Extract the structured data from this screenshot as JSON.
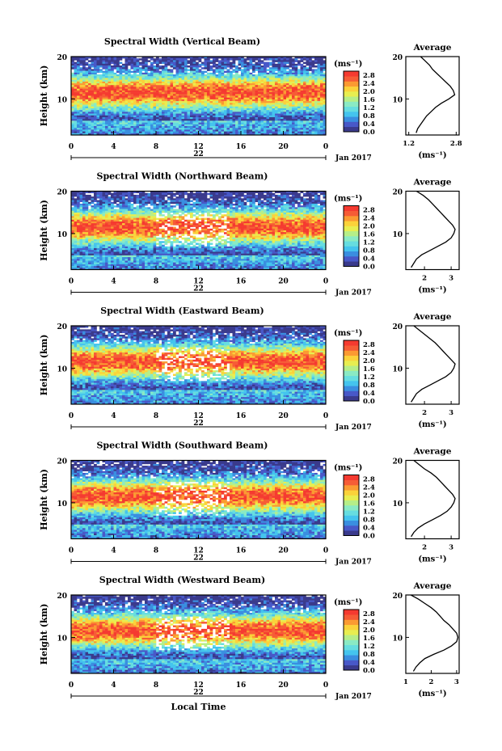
{
  "figure": {
    "date_label": "Jan 2017",
    "day_label": "22",
    "xlabel": "Local Time",
    "colorbar_unit": "(ms⁻¹)",
    "average_title": "Average",
    "average_xlabel": "(ms⁻¹)"
  },
  "colors": {
    "palette": [
      "#3a3a8c",
      "#4858c8",
      "#3a8ee0",
      "#44c4ee",
      "#66dde0",
      "#8aeac4",
      "#b6ee88",
      "#e8ee50",
      "#fbd23a",
      "#fb9a32",
      "#f65c36",
      "#f53a30"
    ]
  },
  "chart_data": [
    {
      "type": "heatmap",
      "title": "Spectral Width (Vertical Beam)",
      "ylabel": "Height (km)",
      "x_ticks": [
        "0",
        "4",
        "8",
        "12",
        "16",
        "20",
        "0"
      ],
      "xlim": [
        0,
        24
      ],
      "y_ticks": [
        "20",
        "10"
      ],
      "ylim": [
        1.5,
        20
      ],
      "colorbar": {
        "ticks": [
          "0.0",
          "0.4",
          "0.8",
          "1.2",
          "1.6",
          "2.0",
          "2.4",
          "2.8"
        ],
        "range": [
          0,
          3.0
        ]
      },
      "average": {
        "x_ticks": [
          "1.2",
          "2.8"
        ],
        "xlim": [
          1.1,
          2.9
        ],
        "height": [
          2,
          3,
          4,
          5,
          6,
          7,
          8,
          9,
          10,
          11,
          12,
          13,
          14,
          15,
          16,
          17,
          18,
          19,
          20
        ],
        "value": [
          1.45,
          1.5,
          1.6,
          1.7,
          1.8,
          1.95,
          2.1,
          2.3,
          2.55,
          2.75,
          2.7,
          2.6,
          2.45,
          2.3,
          2.15,
          2.0,
          1.9,
          1.75,
          1.6
        ]
      }
    },
    {
      "type": "heatmap",
      "title": "Spectral Width (Northward Beam)",
      "ylabel": "Height (km)",
      "x_ticks": [
        "0",
        "4",
        "8",
        "12",
        "16",
        "20",
        "0"
      ],
      "xlim": [
        0,
        24
      ],
      "y_ticks": [
        "20",
        "10"
      ],
      "ylim": [
        1.5,
        20
      ],
      "colorbar": {
        "ticks": [
          "0.0",
          "0.4",
          "0.8",
          "1.2",
          "1.6",
          "2.0",
          "2.4",
          "2.8"
        ],
        "range": [
          0,
          3.0
        ]
      },
      "average": {
        "x_ticks": [
          "2",
          "3"
        ],
        "xlim": [
          1.3,
          3.3
        ],
        "height": [
          2,
          3,
          4,
          5,
          6,
          7,
          8,
          9,
          10,
          11,
          12,
          13,
          14,
          15,
          16,
          17,
          18,
          19,
          20
        ],
        "value": [
          1.5,
          1.6,
          1.7,
          1.9,
          2.2,
          2.5,
          2.8,
          3.0,
          3.1,
          3.15,
          3.05,
          2.9,
          2.75,
          2.6,
          2.45,
          2.3,
          2.15,
          1.95,
          1.7
        ]
      }
    },
    {
      "type": "heatmap",
      "title": "Spectral Width (Eastward Beam)",
      "ylabel": "Height (km)",
      "x_ticks": [
        "0",
        "4",
        "8",
        "12",
        "16",
        "20",
        "0"
      ],
      "xlim": [
        0,
        24
      ],
      "y_ticks": [
        "20",
        "10"
      ],
      "ylim": [
        1.5,
        20
      ],
      "colorbar": {
        "ticks": [
          "0.0",
          "0.4",
          "0.8",
          "1.2",
          "1.6",
          "2.0",
          "2.4",
          "2.8"
        ],
        "range": [
          0,
          3.0
        ]
      },
      "average": {
        "x_ticks": [
          "2",
          "3"
        ],
        "xlim": [
          1.3,
          3.3
        ],
        "height": [
          2,
          3,
          4,
          5,
          6,
          7,
          8,
          9,
          10,
          11,
          12,
          13,
          14,
          15,
          16,
          17,
          18,
          19,
          20
        ],
        "value": [
          1.5,
          1.6,
          1.7,
          1.9,
          2.2,
          2.5,
          2.8,
          3.0,
          3.1,
          3.15,
          3.0,
          2.85,
          2.7,
          2.55,
          2.4,
          2.2,
          2.0,
          1.8,
          1.6
        ]
      }
    },
    {
      "type": "heatmap",
      "title": "Spectral Width (Southward Beam)",
      "ylabel": "Height (km)",
      "x_ticks": [
        "0",
        "4",
        "8",
        "12",
        "16",
        "20",
        "0"
      ],
      "xlim": [
        0,
        24
      ],
      "y_ticks": [
        "20",
        "10"
      ],
      "ylim": [
        1.5,
        20
      ],
      "colorbar": {
        "ticks": [
          "0.0",
          "0.4",
          "0.8",
          "1.2",
          "1.6",
          "2.0",
          "2.4",
          "2.8"
        ],
        "range": [
          0,
          3.0
        ]
      },
      "average": {
        "x_ticks": [
          "2",
          "3"
        ],
        "xlim": [
          1.3,
          3.3
        ],
        "height": [
          2,
          3,
          4,
          5,
          6,
          7,
          8,
          9,
          10,
          11,
          12,
          13,
          14,
          15,
          16,
          17,
          18,
          19,
          20
        ],
        "value": [
          1.5,
          1.6,
          1.75,
          2.0,
          2.3,
          2.6,
          2.85,
          3.0,
          3.1,
          3.15,
          3.05,
          2.9,
          2.75,
          2.6,
          2.45,
          2.25,
          2.0,
          1.8,
          1.6
        ]
      }
    },
    {
      "type": "heatmap",
      "title": "Spectral Width (Westward Beam)",
      "ylabel": "Height (km)",
      "x_ticks": [
        "0",
        "4",
        "8",
        "12",
        "16",
        "20",
        "0"
      ],
      "xlim": [
        0,
        24
      ],
      "y_ticks": [
        "20",
        "10"
      ],
      "ylim": [
        1.5,
        20
      ],
      "colorbar": {
        "ticks": [
          "0.0",
          "0.4",
          "0.8",
          "1.2",
          "1.6",
          "2.0",
          "2.4",
          "2.8"
        ],
        "range": [
          0,
          3.0
        ]
      },
      "average": {
        "x_ticks": [
          "1",
          "2",
          "3"
        ],
        "xlim": [
          1.0,
          3.1
        ],
        "height": [
          2,
          3,
          4,
          5,
          6,
          7,
          8,
          9,
          10,
          11,
          12,
          13,
          14,
          15,
          16,
          17,
          18,
          19,
          20
        ],
        "value": [
          1.3,
          1.4,
          1.55,
          1.75,
          2.1,
          2.5,
          2.8,
          3.0,
          3.05,
          3.0,
          2.85,
          2.7,
          2.5,
          2.35,
          2.2,
          2.0,
          1.75,
          1.5,
          1.2
        ]
      }
    }
  ]
}
